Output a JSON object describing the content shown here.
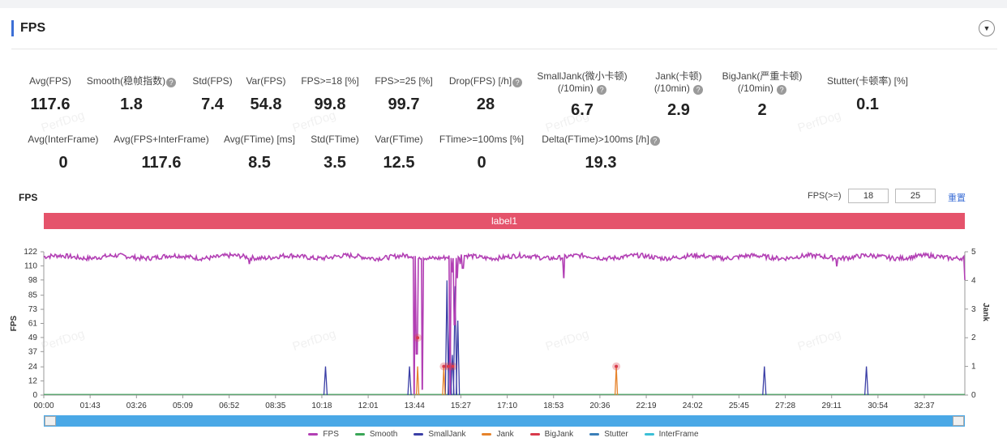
{
  "panel": {
    "title": "FPS"
  },
  "metrics_row1": [
    {
      "label": "Avg(FPS)",
      "value": "117.6",
      "help": false
    },
    {
      "label": "Smooth(稳帧指数)",
      "value": "1.8",
      "help": true
    },
    {
      "label": "Std(FPS)",
      "value": "7.4",
      "help": false
    },
    {
      "label": "Var(FPS)",
      "value": "54.8",
      "help": false
    },
    {
      "label": "FPS>=18 [%]",
      "value": "99.8",
      "help": false
    },
    {
      "label": "FPS>=25 [%]",
      "value": "99.7",
      "help": false
    },
    {
      "label": "Drop(FPS) [/h]",
      "value": "28",
      "help": true
    },
    {
      "label": "SmallJank(微小卡顿)",
      "label2": "(/10min)",
      "value": "6.7",
      "help": true
    },
    {
      "label": "Jank(卡顿)",
      "label2": "(/10min)",
      "value": "2.9",
      "help": true
    },
    {
      "label": "BigJank(严重卡顿)",
      "label2": "(/10min)",
      "value": "2",
      "help": true
    },
    {
      "label": "Stutter(卡顿率) [%]",
      "value": "0.1",
      "help": false
    }
  ],
  "metrics_row2": [
    {
      "label": "Avg(InterFrame)",
      "value": "0",
      "help": false
    },
    {
      "label": "Avg(FPS+InterFrame)",
      "value": "117.6",
      "help": false
    },
    {
      "label": "Avg(FTime) [ms]",
      "value": "8.5",
      "help": false
    },
    {
      "label": "Std(FTime)",
      "value": "3.5",
      "help": false
    },
    {
      "label": "Var(FTime)",
      "value": "12.5",
      "help": false
    },
    {
      "label": "FTime>=100ms [%]",
      "value": "0",
      "help": false
    },
    {
      "label": "Delta(FTime)>100ms [/h]",
      "value": "19.3",
      "help": true
    }
  ],
  "watermark": "PerfDog",
  "chart_header": {
    "title": "FPS",
    "threshold_label": "FPS(>=)",
    "threshold_1": "18",
    "threshold_2": "25",
    "reset": "重置",
    "label_bar": "label1"
  },
  "chart_data": {
    "type": "line",
    "ylabel": "FPS",
    "y2label": "Jank",
    "ylim": [
      0,
      122
    ],
    "y2lim": [
      0,
      5
    ],
    "yticks": [
      0,
      12,
      24,
      37,
      49,
      61,
      73,
      85,
      98,
      110,
      122
    ],
    "y2ticks": [
      0,
      1,
      2,
      3,
      4,
      5
    ],
    "xticks": [
      "00:00",
      "01:43",
      "03:26",
      "05:09",
      "06:52",
      "08:35",
      "10:18",
      "12:01",
      "13:44",
      "15:27",
      "17:10",
      "18:53",
      "20:36",
      "22:19",
      "24:02",
      "25:45",
      "27:28",
      "29:11",
      "30:54",
      "32:37"
    ],
    "x_range_seconds": [
      0,
      2040
    ],
    "fps_baseline": 117.6,
    "fps_dips": [
      {
        "t": 820,
        "fps": 1
      },
      {
        "t": 826,
        "fps": 35
      },
      {
        "t": 838,
        "fps": 5
      },
      {
        "t": 900,
        "fps": 1
      },
      {
        "t": 904,
        "fps": 105
      },
      {
        "t": 910,
        "fps": 60
      },
      {
        "t": 916,
        "fps": 100
      },
      {
        "t": 922,
        "fps": 112
      },
      {
        "t": 928,
        "fps": 108
      },
      {
        "t": 1152,
        "fps": 100
      },
      {
        "t": 455,
        "fps": 112
      },
      {
        "t": 1756,
        "fps": 110
      },
      {
        "t": 2040,
        "fps": 98
      }
    ],
    "series": [
      {
        "name": "FPS",
        "color": "#b23fb4"
      },
      {
        "name": "Smooth",
        "color": "#3aa657"
      },
      {
        "name": "SmallJank",
        "color": "#3b3fa6"
      },
      {
        "name": "Jank",
        "color": "#e6832b"
      },
      {
        "name": "BigJank",
        "color": "#d93a4a"
      },
      {
        "name": "Stutter",
        "color": "#3b7fb8"
      },
      {
        "name": "InterFrame",
        "color": "#3bbfd6"
      }
    ],
    "smalljank_spikes": [
      {
        "t": 624,
        "v": 1
      },
      {
        "t": 810,
        "v": 1
      },
      {
        "t": 893,
        "v": 4
      },
      {
        "t": 899,
        "v": 2.9
      },
      {
        "t": 905,
        "v": 1.4
      },
      {
        "t": 911,
        "v": 3.8
      },
      {
        "t": 917,
        "v": 2.6
      },
      {
        "t": 1596,
        "v": 1
      },
      {
        "t": 1822,
        "v": 1
      }
    ],
    "jank_spikes": [
      {
        "t": 828,
        "v": 1
      },
      {
        "t": 886,
        "v": 1
      },
      {
        "t": 1268,
        "v": 1
      }
    ],
    "bigjank_points": [
      {
        "t": 828,
        "v": 2
      },
      {
        "t": 886,
        "v": 1
      },
      {
        "t": 896,
        "v": 1
      },
      {
        "t": 906,
        "v": 1
      },
      {
        "t": 1268,
        "v": 1
      }
    ]
  }
}
